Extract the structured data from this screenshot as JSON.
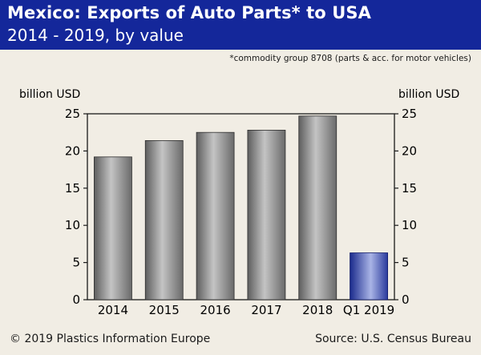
{
  "header": {
    "title": "Mexico: Exports of Auto Parts* to USA",
    "subtitle": "2014 - 2019, by value"
  },
  "footnote": "*commodity group 8708 (parts & acc. for motor vehicles)",
  "footer": {
    "copyright": "© 2019 Plastics Information Europe",
    "source": "Source: U.S. Census Bureau"
  },
  "colors": {
    "header_bg": "#14279a",
    "background": "#f1ede4",
    "bar_gray": "#8a8a8a",
    "bar_blue": "#2a3fa8"
  },
  "chart_data": {
    "type": "bar",
    "categories": [
      "2014",
      "2015",
      "2016",
      "2017",
      "2018",
      "Q1 2019"
    ],
    "values": [
      19.2,
      21.4,
      22.5,
      22.8,
      24.7,
      6.3
    ],
    "ylabel_left": "billion USD",
    "ylabel_right": "billion USD",
    "ylim": [
      0,
      25
    ],
    "yticks": [
      "0",
      "5",
      "10",
      "15",
      "20",
      "25"
    ],
    "grid": false,
    "highlight_category": "Q1 2019"
  }
}
